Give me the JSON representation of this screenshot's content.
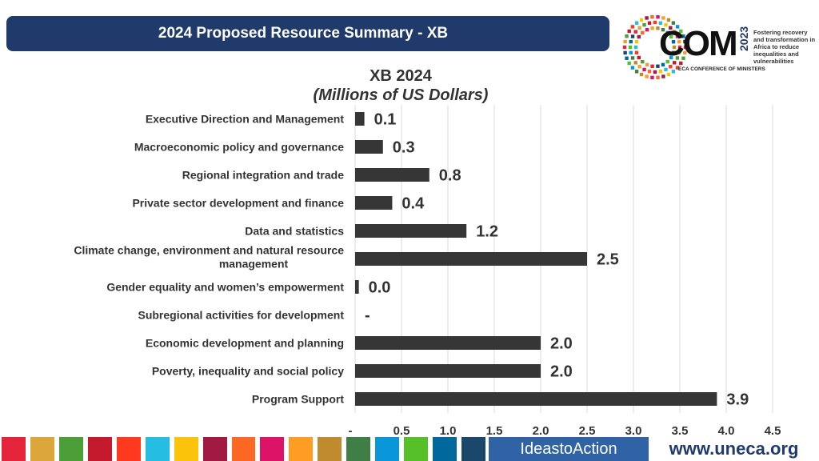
{
  "header": {
    "title": "2024 Proposed Resource Summary - XB"
  },
  "logo": {
    "wordmark": "COM",
    "year": "2023",
    "subtitle": "ECA CONFERENCE OF MINISTERS",
    "tagline": "Fostering recovery and transformation in Africa to reduce inequalities and vulnerabilities"
  },
  "chart_data": {
    "type": "bar",
    "orientation": "horizontal",
    "title": "XB 2024",
    "subtitle": "(Millions of US Dollars)",
    "categories": [
      "Executive Direction and Management",
      "Macroeconomic policy and governance",
      "Regional integration and trade",
      "Private sector development and finance",
      "Data and statistics",
      "Climate change, environment and natural resource management",
      "Gender equality and women’s empowerment",
      "Subregional activities for development",
      "Economic development and planning",
      "Poverty, inequality and social policy",
      "Program Support"
    ],
    "values": [
      0.1,
      0.3,
      0.8,
      0.4,
      1.2,
      2.5,
      0.04,
      0,
      2.0,
      2.0,
      3.9
    ],
    "value_labels": [
      "0.1",
      "0.3",
      "0.8",
      "0.4",
      "1.2",
      "2.5",
      "0.0",
      "-",
      "2.0",
      "2.0",
      "3.9"
    ],
    "xlim": [
      0,
      4.5
    ],
    "x_ticks": [
      "-",
      "0.5",
      "1.0",
      "1.5",
      "2.0",
      "2.5",
      "3.0",
      "3.5",
      "4.0",
      "4.5"
    ],
    "grid": true,
    "bar_color": "#363636"
  },
  "footer": {
    "sdg_colors": [
      "#e5243b",
      "#dda63a",
      "#4c9f38",
      "#c5192d",
      "#ff3a21",
      "#26bde2",
      "#fcc30b",
      "#a21942",
      "#fd6925",
      "#dd1367",
      "#fd9d24",
      "#bf8b2e",
      "#3f7e44",
      "#0a97d9",
      "#56c02b",
      "#00689d",
      "#19486a"
    ],
    "ideas_text": "IdeastoAction",
    "website": "www.uneca.org"
  }
}
